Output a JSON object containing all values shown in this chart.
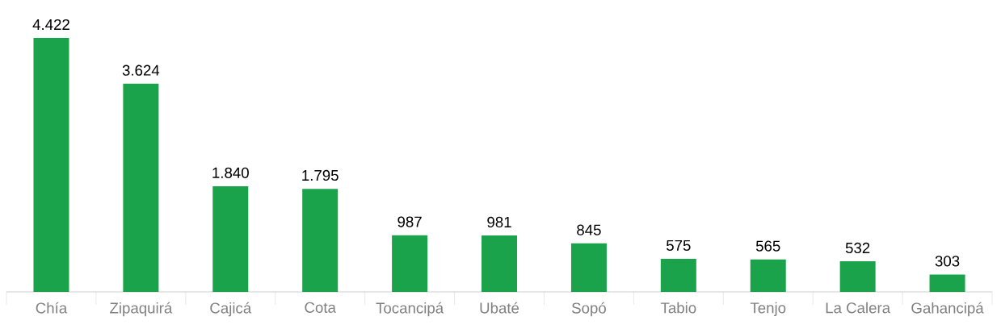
{
  "chart_data": {
    "type": "bar",
    "categories": [
      "Chía",
      "Zipaquirá",
      "Cajicá",
      "Cota",
      "Tocancipá",
      "Ubaté",
      "Sopó",
      "Tabio",
      "Tenjo",
      "La Calera",
      "Gahancipá"
    ],
    "values": [
      4422,
      3624,
      1840,
      1795,
      987,
      981,
      845,
      575,
      565,
      532,
      303
    ],
    "value_labels": [
      "4.422",
      "3.624",
      "1.840",
      "1.795",
      "987",
      "981",
      "845",
      "575",
      "565",
      "532",
      "303"
    ],
    "color": "#1aa34a"
  }
}
